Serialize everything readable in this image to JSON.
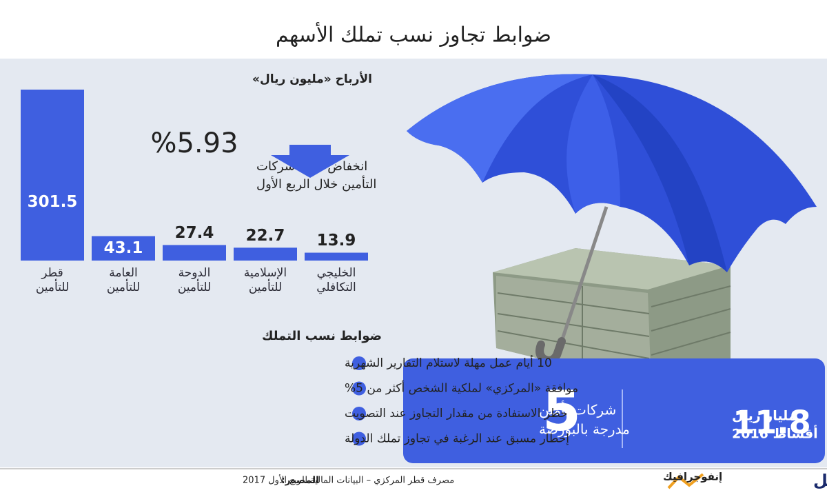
{
  "infographic": {
    "title": "ضوابط تجاوز نسب تملك الأسهم",
    "decline_figure": "%5.93",
    "decline_text": [
      "انخفاض أرباح شركات",
      "التأمين خلال الربع الأول"
    ],
    "rules_heading": "ضوابط نسب التملك",
    "rules": [
      "10 أيام عمل مهلة لاستلام التقارير الشهرية",
      "موافقة «المركزي» لملكية الشخص أكثر من 5%",
      "حظر الاستفادة من مقدار  التجاوز عند التصويت",
      "إخطار مسبق عند الرغبة في تجاوز تملك الدولة"
    ],
    "stat_companies": {
      "figure": "5",
      "lines": [
        "شركات تأمين",
        "مدرجة بالبورصة"
      ]
    },
    "stat_premiums": {
      "figure": "11.8",
      "lines": [
        "مليار ريال",
        "أقساط 2016"
      ]
    },
    "source_label": "المصدر:",
    "source": "مصرف قطر المركزي – البيانات المالية للربع الأول 2017",
    "brand": "لوسيل",
    "brand_section": "إنفوجرافيك"
  },
  "chart_data": {
    "type": "bar",
    "title": "الأرباح «مليون ريال»",
    "categories": [
      "قطر للتأمين",
      "العامة للتأمين",
      "الدوحة للتأمين",
      "الإسلامية للتأمين",
      "الخليجي التكافلي"
    ],
    "values": [
      301.5,
      43.1,
      27.4,
      22.7,
      13.9
    ],
    "color": "#3f5fe0"
  }
}
